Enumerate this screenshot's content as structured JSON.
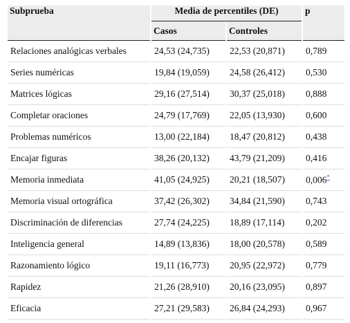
{
  "table": {
    "header": {
      "subprueba": "Subprueba",
      "media": "Media de percentiles (DE)",
      "p": "p",
      "casos": "Casos",
      "controles": "Controles"
    },
    "rows": [
      [
        "Relaciones analógicas verbales",
        "24,53 (24,735)",
        "22,53 (20,871)",
        "0,789"
      ],
      [
        "Series numéricas",
        "19,84 (19,059)",
        "24,58 (26,412)",
        "0,530"
      ],
      [
        "Matrices lógicas",
        "29,16 (27,514)",
        "30,37 (25,018)",
        "0,888"
      ],
      [
        "Completar oraciones",
        "24,79 (17,769)",
        "22,05 (13,930)",
        "0,600"
      ],
      [
        "Problemas numéricos",
        "13,00 (22,184)",
        "18,47 (20,812)",
        "0,438"
      ],
      [
        "Encajar figuras",
        "38,26 (20,132)",
        "43,79 (21,209)",
        "0,416"
      ],
      [
        "Memoria inmediata",
        "41,05 (24,925)",
        "20,21 (18,507)",
        "0,006"
      ],
      [
        "Memoria visual ortográfica",
        "37,42 (26,302)",
        "34,84 (21,590)",
        "0,743"
      ],
      [
        "Discriminación de diferencias",
        "27,74 (24,225)",
        "18,89 (17,114)",
        "0,202"
      ],
      [
        "Inteligencia general",
        "14,89 (13,836)",
        "18,00 (20,578)",
        "0,589"
      ],
      [
        "Razonamiento lógico",
        "19,11 (16,773)",
        "20,95 (22,972)",
        "0,779"
      ],
      [
        "Rapidez",
        "21,26 (28,910)",
        "20,16 (23,095)",
        "0,897"
      ],
      [
        "Eficacia",
        "27,21 (29,583)",
        "26,84 (24,293)",
        "0,967"
      ]
    ],
    "note": {
      "row": 6,
      "mark": "*"
    }
  }
}
